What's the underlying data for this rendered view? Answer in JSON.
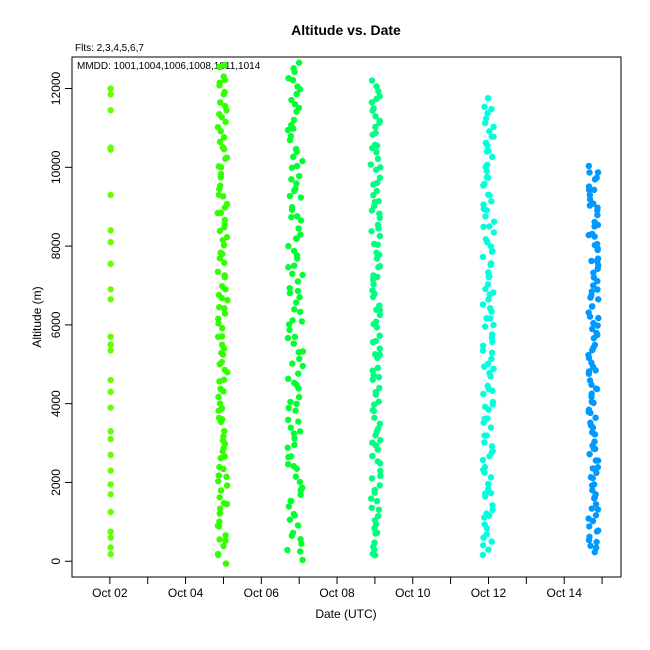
{
  "chart_data": {
    "type": "scatter",
    "title": "Altitude  vs. Date",
    "subtitle": "Flts: 2,3,4,5,6,7",
    "annotation": "MMDD: 1001,1004,1006,1008,1011,1014",
    "xlabel": "Date (UTC)",
    "ylabel": "Altitude (m)",
    "xlim": [
      "2014-10-01T00:00",
      "2014-10-15T12:00"
    ],
    "ylim": [
      -400,
      12800
    ],
    "x_ticks": [
      {
        "date": "2014-10-02",
        "label": "Oct 02"
      },
      {
        "date": "2014-10-03",
        "label": ""
      },
      {
        "date": "2014-10-04",
        "label": "Oct 04"
      },
      {
        "date": "2014-10-05",
        "label": ""
      },
      {
        "date": "2014-10-06",
        "label": "Oct 06"
      },
      {
        "date": "2014-10-07",
        "label": ""
      },
      {
        "date": "2014-10-08",
        "label": "Oct 08"
      },
      {
        "date": "2014-10-09",
        "label": ""
      },
      {
        "date": "2014-10-10",
        "label": "Oct 10"
      },
      {
        "date": "2014-10-11",
        "label": ""
      },
      {
        "date": "2014-10-12",
        "label": "Oct 12"
      },
      {
        "date": "2014-10-13",
        "label": ""
      },
      {
        "date": "2014-10-14",
        "label": "Oct 14"
      },
      {
        "date": "2014-10-15",
        "label": ""
      }
    ],
    "y_ticks": [
      {
        "value": 0,
        "label": "0"
      },
      {
        "value": 2000,
        "label": "2000"
      },
      {
        "value": 4000,
        "label": "4000"
      },
      {
        "value": 6000,
        "label": "6000"
      },
      {
        "value": 8000,
        "label": "8000"
      },
      {
        "value": 10000,
        "label": "10000"
      },
      {
        "value": 12000,
        "label": "12000"
      }
    ],
    "grid": false,
    "legend": "none",
    "series": [
      {
        "color": "#66ff00",
        "date_range": [
          "2014-10-02T00:00",
          "2014-10-02T01:00"
        ],
        "alt_range": [
          100,
          12000
        ],
        "points": [
          {
            "date": "2014-10-02T00:30",
            "alt": 180
          },
          {
            "date": "2014-10-02T00:30",
            "alt": 350
          },
          {
            "date": "2014-10-02T00:30",
            "alt": 600
          },
          {
            "date": "2014-10-02T00:30",
            "alt": 750
          },
          {
            "date": "2014-10-02T00:30",
            "alt": 1250
          },
          {
            "date": "2014-10-02T00:30",
            "alt": 1700
          },
          {
            "date": "2014-10-02T00:30",
            "alt": 1950
          },
          {
            "date": "2014-10-02T00:30",
            "alt": 2300
          },
          {
            "date": "2014-10-02T00:30",
            "alt": 2700
          },
          {
            "date": "2014-10-02T00:30",
            "alt": 3100
          },
          {
            "date": "2014-10-02T00:30",
            "alt": 3300
          },
          {
            "date": "2014-10-02T00:30",
            "alt": 3900
          },
          {
            "date": "2014-10-02T00:30",
            "alt": 4300
          },
          {
            "date": "2014-10-02T00:30",
            "alt": 4600
          },
          {
            "date": "2014-10-02T00:30",
            "alt": 5350
          },
          {
            "date": "2014-10-02T00:30",
            "alt": 5500
          },
          {
            "date": "2014-10-02T00:30",
            "alt": 5700
          },
          {
            "date": "2014-10-02T00:30",
            "alt": 6650
          },
          {
            "date": "2014-10-02T00:30",
            "alt": 6900
          },
          {
            "date": "2014-10-02T00:30",
            "alt": 7550
          },
          {
            "date": "2014-10-02T00:30",
            "alt": 8100
          },
          {
            "date": "2014-10-02T00:30",
            "alt": 8400
          },
          {
            "date": "2014-10-02T00:30",
            "alt": 9300
          },
          {
            "date": "2014-10-02T00:30",
            "alt": 10450
          },
          {
            "date": "2014-10-02T00:30",
            "alt": 10500
          },
          {
            "date": "2014-10-02T00:30",
            "alt": 11450
          },
          {
            "date": "2014-10-02T00:30",
            "alt": 11850
          },
          {
            "date": "2014-10-02T00:30",
            "alt": 12000
          }
        ]
      },
      {
        "color": "#33ff00",
        "date_range": [
          "2014-10-04T20:00",
          "2014-10-05T03:00"
        ],
        "alt_range": [
          0,
          12600
        ],
        "points": []
      },
      {
        "color": "#00ff33",
        "date_range": [
          "2014-10-06T16:00",
          "2014-10-07T03:00"
        ],
        "alt_range": [
          100,
          12600
        ],
        "points": []
      },
      {
        "color": "#00ff80",
        "date_range": [
          "2014-10-08T21:00",
          "2014-10-09T04:00"
        ],
        "alt_range": [
          100,
          12200
        ],
        "points": []
      },
      {
        "color": "#00ffdd",
        "date_range": [
          "2014-10-11T20:00",
          "2014-10-12T04:00"
        ],
        "alt_range": [
          200,
          11700
        ],
        "points": []
      },
      {
        "color": "#0099ff",
        "date_range": [
          "2014-10-14T15:00",
          "2014-10-14T22:00"
        ],
        "alt_range": [
          200,
          10000
        ],
        "points": []
      }
    ]
  }
}
